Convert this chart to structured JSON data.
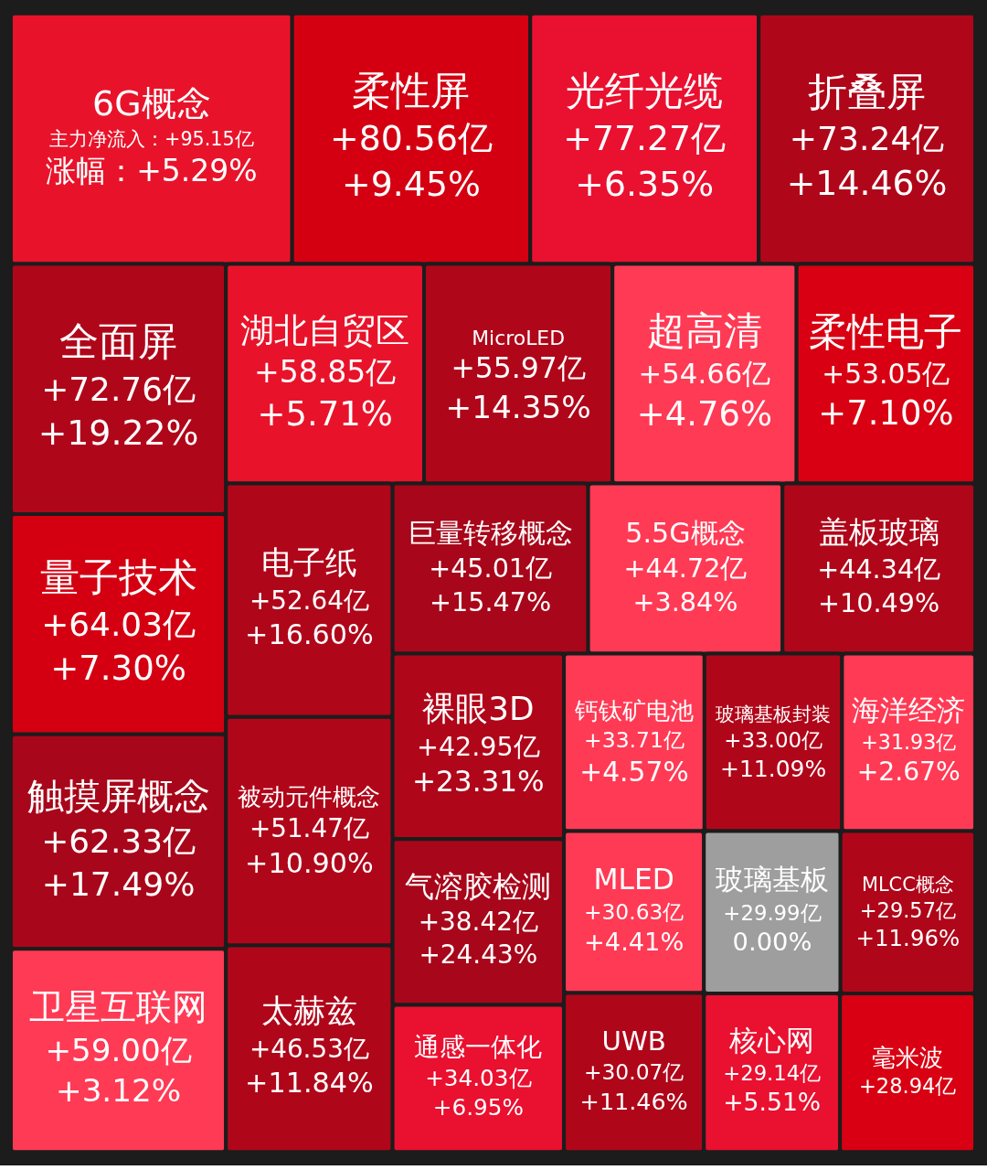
{
  "chart_data": {
    "type": "other",
    "categories": [
      "6G概念",
      "柔性屏",
      "光纤光缆",
      "折叠屏",
      "全面屏",
      "量子技术",
      "触摸屏概念",
      "卫星互联网",
      "湖北自贸区",
      "MicroLED",
      "超高清",
      "柔性电子",
      "电子纸",
      "被动元件概念",
      "太赫兹",
      "巨量转移概念",
      "5.5G概念",
      "盖板玻璃",
      "裸眼3D",
      "气溶胶检测",
      "通感一体化",
      "钙钛矿电池",
      "玻璃基板封装",
      "海洋经济",
      "MLED",
      "UWB",
      "玻璃基板",
      "MLCC概念",
      "核心网",
      "毫米波"
    ],
    "series": [
      {
        "colors": [
          "#e8132a",
          "#d40012",
          "#ea1030",
          "#b0061a",
          "#b0061a",
          "#d40012",
          "#a8061a",
          "#ff3a55",
          "#e8132a",
          "#b0061a",
          "#ff3a55",
          "#d80012",
          "#b0061a",
          "#b0061a",
          "#b0061a",
          "#a8061a",
          "#ff3a55",
          "#b0061a",
          "#b0061a",
          "#a8061a",
          "#ea1030",
          "#ff3a55",
          "#b0061a",
          "#ff3a55",
          "#ff3a55",
          "#b0061a",
          "#9e9e9e",
          "#b0061a",
          "#ea1030",
          "#d80012"
        ],
        "values": [
          95.15,
          80.56,
          77.27,
          73.24,
          72.76,
          64.03,
          62.33,
          59.0,
          58.85,
          55.97,
          54.66,
          53.05,
          52.64,
          51.47,
          46.53,
          45.01,
          44.72,
          44.34,
          42.95,
          38.42,
          34.03,
          33.71,
          33.0,
          31.93,
          30.63,
          30.07,
          29.99,
          29.57,
          29.14,
          28.94
        ],
        "value_labels": [
          "主力净流入：+95.15亿",
          "+80.56亿",
          "+77.27亿",
          "+73.24亿",
          "+72.76亿",
          "+64.03亿",
          "+62.33亿",
          "+59.00亿",
          "+58.85亿",
          "+55.97亿",
          "+54.66亿",
          "+53.05亿",
          "+52.64亿",
          "+51.47亿",
          "+46.53亿",
          "+45.01亿",
          "+44.72亿",
          "+44.34亿",
          "+42.95亿",
          "+38.42亿",
          "+34.03亿",
          "+33.71亿",
          "+33.00亿",
          "+31.93亿",
          "+30.63亿",
          "+30.07亿",
          "+29.99亿",
          "+29.57亿",
          "+29.14亿",
          "+28.94亿"
        ]
      },
      {
        "values": [
          5.29,
          9.45,
          6.35,
          14.46,
          19.22,
          7.3,
          17.49,
          3.12,
          5.71,
          14.35,
          4.76,
          7.1,
          16.6,
          10.9,
          11.84,
          15.47,
          3.84,
          10.49,
          23.31,
          24.43,
          6.95,
          4.57,
          11.09,
          2.67,
          4.41,
          11.46,
          0.0,
          11.96,
          5.51,
          null
        ],
        "value_labels": [
          "涨幅：+5.29%",
          "+9.45%",
          "+6.35%",
          "+14.46%",
          "+19.22%",
          "+7.30%",
          "+17.49%",
          "+3.12%",
          "+5.71%",
          "+14.35%",
          "+4.76%",
          "+7.10%",
          "+16.60%",
          "+10.90%",
          "+11.84%",
          "+15.47%",
          "+3.84%",
          "+10.49%",
          "+23.31%",
          "+24.43%",
          "+6.95%",
          "+4.57%",
          "+11.09%",
          "+2.67%",
          "+4.41%",
          "+11.46%",
          "0.00%",
          "+11.96%",
          "+5.51%",
          null
        ]
      }
    ]
  }
}
